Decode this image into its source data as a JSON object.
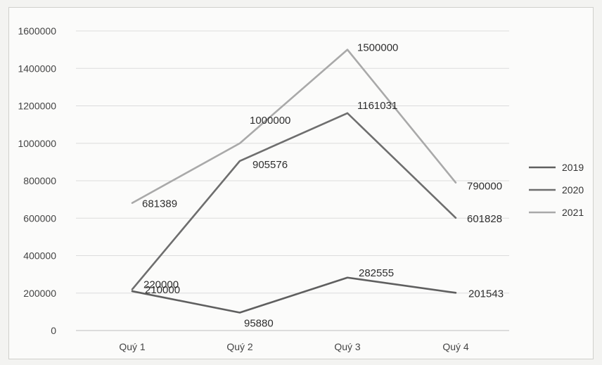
{
  "chart_data": {
    "type": "line",
    "categories": [
      "Quý 1",
      "Quý 2",
      "Quý 3",
      "Quý 4"
    ],
    "series": [
      {
        "name": "2019",
        "values": [
          210000,
          95880,
          282555,
          201543
        ],
        "color": "#5f5f5f",
        "labels": [
          "210000",
          "95880",
          "282555",
          "201543"
        ]
      },
      {
        "name": "2020",
        "values": [
          220000,
          905576,
          1161031,
          601828
        ],
        "color": "#6e6e6e",
        "labels": [
          "220000",
          "905576",
          "1161031",
          "601828"
        ]
      },
      {
        "name": "2021",
        "values": [
          681389,
          1000000,
          1500000,
          790000
        ],
        "color": "#a9a9a9",
        "labels": [
          "681389",
          "1000000",
          "1500000",
          "790000"
        ]
      }
    ],
    "yticks": [
      "0",
      "200000",
      "400000",
      "600000",
      "800000",
      "1000000",
      "1200000",
      "1400000",
      "1600000"
    ],
    "ylim": [
      0,
      1600000
    ],
    "grid": true,
    "legend": "right",
    "title": "",
    "xlabel": "",
    "ylabel": ""
  }
}
